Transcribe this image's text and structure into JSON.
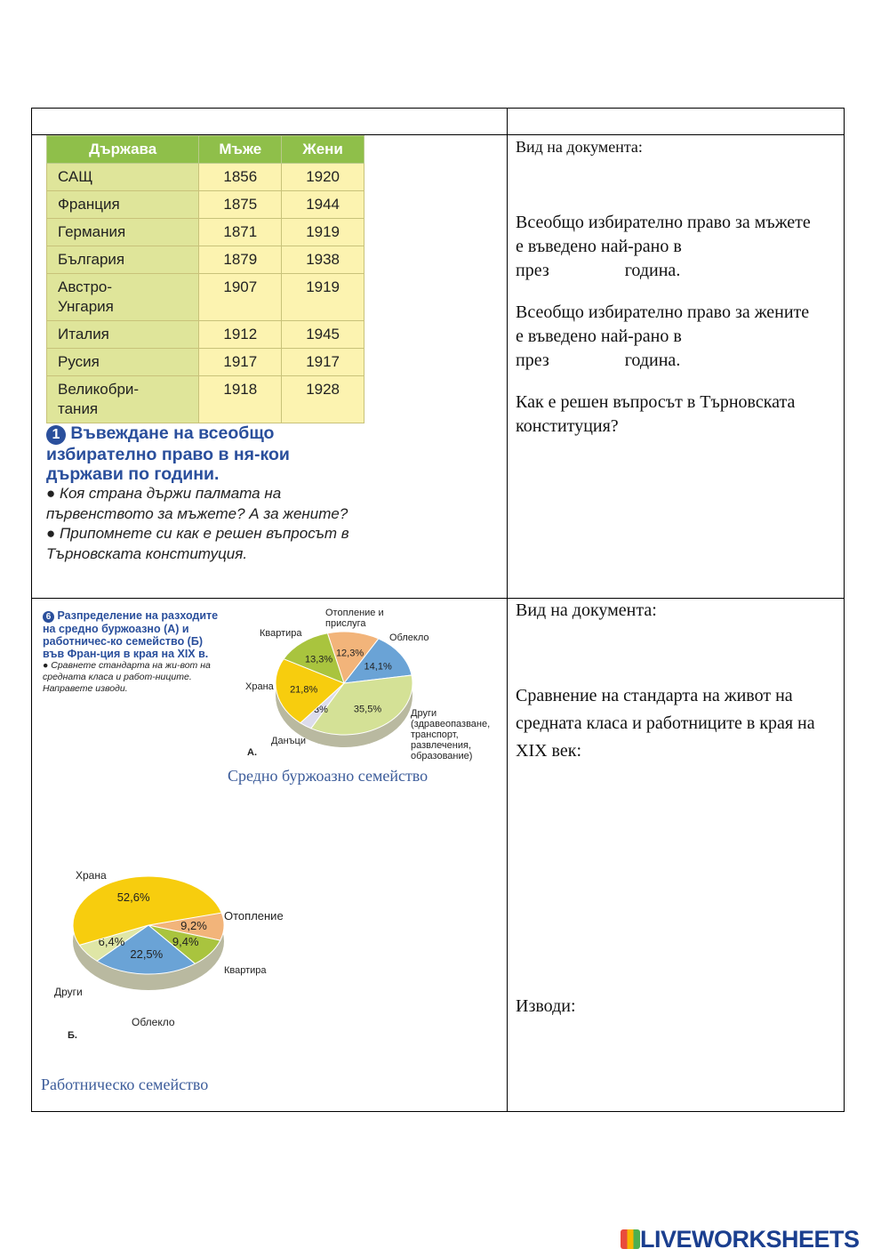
{
  "table1": {
    "headers": [
      "Държава",
      "Мъже",
      "Жени"
    ],
    "rows": [
      [
        "САЩ",
        "1856",
        "1920"
      ],
      [
        "Франция",
        "1875",
        "1944"
      ],
      [
        "Германия",
        "1871",
        "1919"
      ],
      [
        "България",
        "1879",
        "1938"
      ],
      [
        "Австро-\nУнгария",
        "1907",
        "1919"
      ],
      [
        "Италия",
        "1912",
        "1945"
      ],
      [
        "Русия",
        "1917",
        "1917"
      ],
      [
        "Великобри-\nтания",
        "1918",
        "1928"
      ]
    ]
  },
  "caption1": {
    "num": "1",
    "title": "Въвеждане на всеобщо избирателно право в ня-кои държави по години.",
    "question": "● Коя страна държи палмата на първенството за мъжете? А за жените? ● Припомнете си как е решен въпросът в Търновската конституция."
  },
  "right1": {
    "doc_type": "Вид на документа:",
    "p1": "Всеобщо избирателно право за мъжете е въведено най-рано в",
    "p1b": "през                 година.",
    "p2": "Всеобщо избирателно право за жените е въведено най-рано в",
    "p2b": "през                 година.",
    "p3": "Как е решен въпросът в Търновската конституция?"
  },
  "caption2": {
    "num": "6",
    "title": "Разпределение на разходите на средно буржоазно (А) и работничес-ко семейство (Б) във Фран-ция в края на XIX в.",
    "question": "● Сравнете стандарта на жи-вот на средната класа и работ-ниците. Направете изводи."
  },
  "chart_data": [
    {
      "type": "pie",
      "label": "А.",
      "title": "Средно буржоазно семейство",
      "slices": [
        {
          "name": "Отопление и прислуга",
          "value": 12.3,
          "color": "#f2b47a"
        },
        {
          "name": "Облекло",
          "value": 14.1,
          "color": "#6aa3d6"
        },
        {
          "name": "Други (здравеопазване, транспорт, развлечения, образование)",
          "value": 35.5,
          "color": "#d4e196"
        },
        {
          "name": "Данъци",
          "value": 3,
          "color": "#dcdcec"
        },
        {
          "name": "Храна",
          "value": 21.8,
          "color": "#f7cd0e"
        },
        {
          "name": "Квартира",
          "value": 13.3,
          "color": "#a9c43e"
        }
      ],
      "value_labels": [
        "12,3%",
        "14,1%",
        "35,5%",
        "3%",
        "21,8%",
        "13,3%"
      ]
    },
    {
      "type": "pie",
      "label": "Б.",
      "title": "Работническо семейство",
      "slices": [
        {
          "name": "Отопление",
          "value": 9.2,
          "color": "#f2b47a"
        },
        {
          "name": "Квартира",
          "value": 9.4,
          "color": "#a9c43e"
        },
        {
          "name": "Облекло",
          "value": 22.5,
          "color": "#6aa3d6"
        },
        {
          "name": "Други",
          "value": 6.4,
          "color": "#dfe6a6"
        },
        {
          "name": "Храна",
          "value": 52.6,
          "color": "#f7cd0e"
        }
      ],
      "value_labels": [
        "9,2%",
        "9,4%",
        "22,5%",
        "6,4%",
        "52,6%"
      ]
    }
  ],
  "right2": {
    "doc_type": "Вид на документа:",
    "p1": "Сравнение на стандарта на живот на средната класа и работниците в края на XIX век:",
    "p2": "Изводи:"
  },
  "logo": "LIVEWORKSHEETS"
}
